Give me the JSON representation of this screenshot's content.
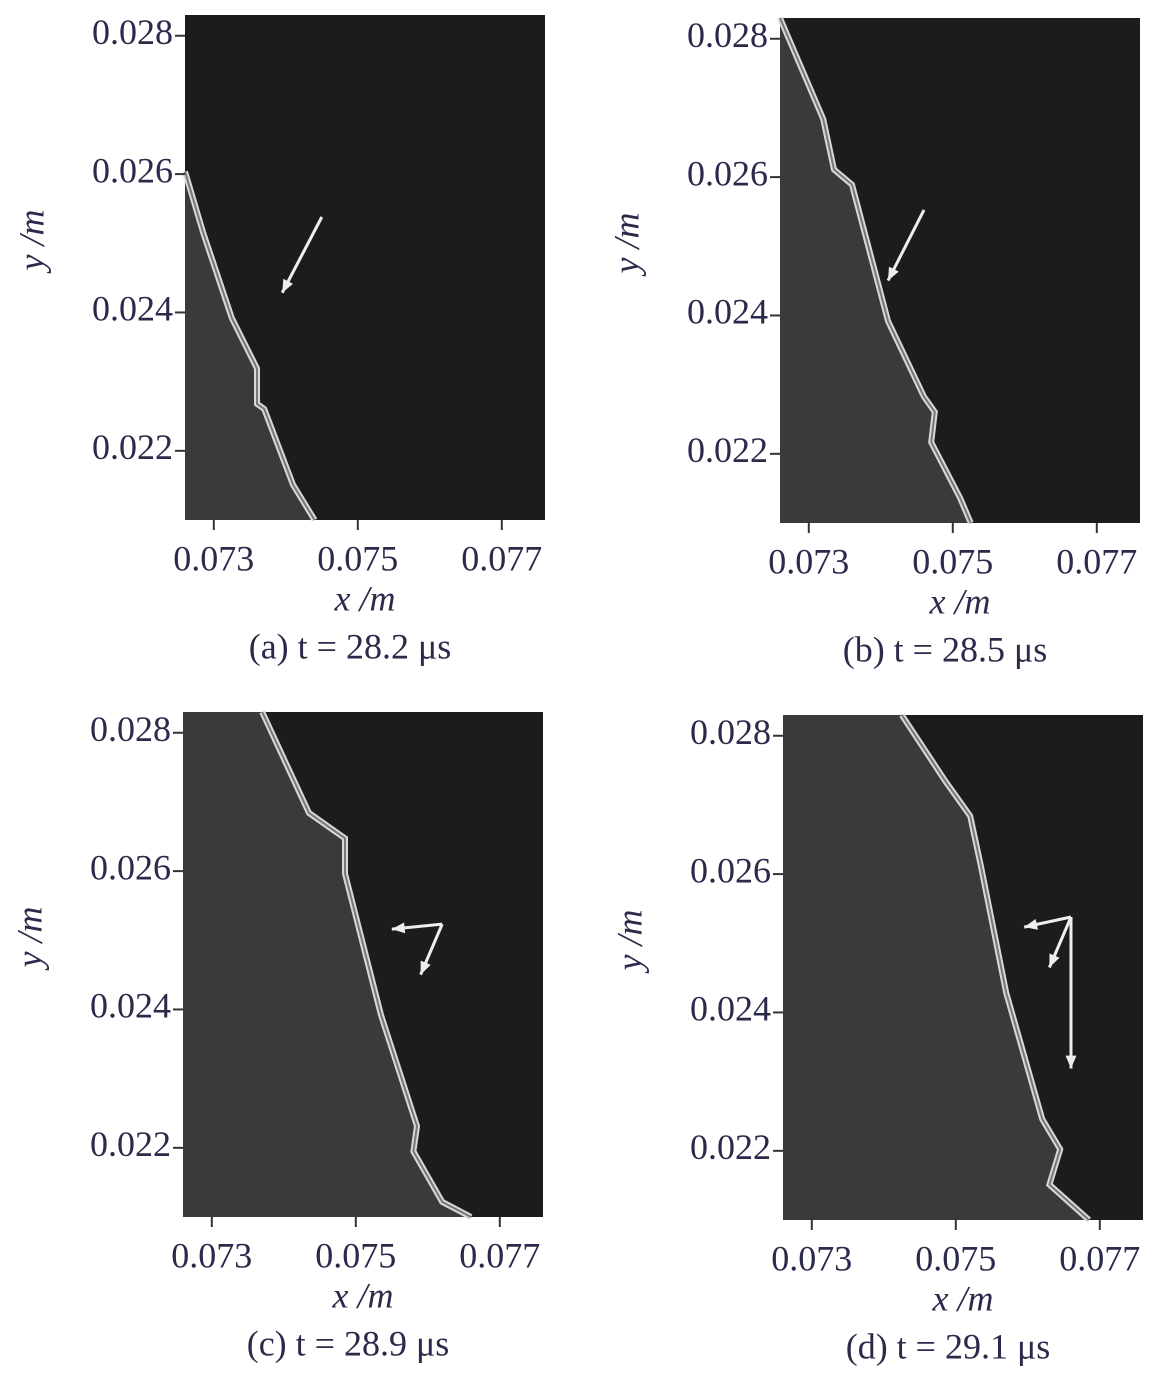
{
  "chart_data": [
    {
      "type": "image",
      "caption": "(a) t = 28.2 μs",
      "xlabel": "x /m",
      "ylabel": "y /m",
      "xlim": [
        0.0726,
        0.0776
      ],
      "ylim": [
        0.021,
        0.0283
      ],
      "xticks": [
        0.073,
        0.075,
        0.077
      ],
      "yticks": [
        0.022,
        0.024,
        0.026,
        0.028
      ]
    },
    {
      "type": "image",
      "caption": "(b) t = 28.5 μs",
      "xlabel": "x /m",
      "ylabel": "y /m",
      "xlim": [
        0.0726,
        0.0776
      ],
      "ylim": [
        0.021,
        0.0283
      ],
      "xticks": [
        0.073,
        0.075,
        0.077
      ],
      "yticks": [
        0.022,
        0.024,
        0.026,
        0.028
      ]
    },
    {
      "type": "image",
      "caption": "(c) t = 28.9 μs",
      "xlabel": "x /m",
      "ylabel": "y /m",
      "xlim": [
        0.0726,
        0.0776
      ],
      "ylim": [
        0.021,
        0.0283
      ],
      "xticks": [
        0.073,
        0.075,
        0.077
      ],
      "yticks": [
        0.022,
        0.024,
        0.026,
        0.028
      ]
    },
    {
      "type": "image",
      "caption": "(d) t = 29.1 μs",
      "xlabel": "x /m",
      "ylabel": "y /m",
      "xlim": [
        0.0726,
        0.0776
      ],
      "ylim": [
        0.021,
        0.0283
      ],
      "xticks": [
        0.073,
        0.075,
        0.077
      ],
      "yticks": [
        0.022,
        0.024,
        0.026,
        0.028
      ]
    }
  ]
}
